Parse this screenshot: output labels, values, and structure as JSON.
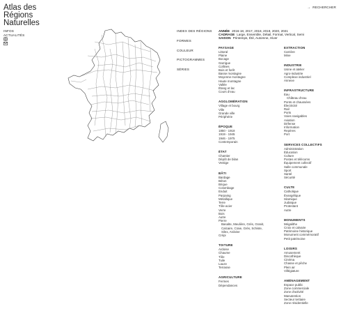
{
  "site": {
    "title_lines": [
      "Atlas des",
      "Régions",
      "Naturelles"
    ]
  },
  "left_nav": {
    "items": [
      "INFOS",
      "ACTUALITÉS"
    ],
    "icons": [
      "instagram-icon",
      "mail-icon"
    ]
  },
  "search": {
    "label": "RECHERCHER",
    "icon": "arrow-right-icon"
  },
  "main_menu": {
    "items": [
      "INDEX DES RÉGIONS",
      "FORMES",
      "COULEUR",
      "PICTOGRAMMES",
      "SÉRIES"
    ]
  },
  "filters": [
    {
      "key": "ANNÉE",
      "value": "2016-18, 2017, 2018, 2019, 2020, 2021"
    },
    {
      "key": "CADRAGE",
      "value": "Large, Ensemble, Détail, Format, Vertical, Semi"
    },
    {
      "key": "SAISON",
      "value": "Printemps, Été, Automne, Hiver"
    }
  ],
  "col1": [
    {
      "title": "PAYSAGE",
      "items": [
        "Littoral",
        "Plaine",
        "Bocage",
        "Garrigue",
        "Collines",
        "Bois et forêt",
        "Basse montagne",
        "Moyenne montagne",
        "Haute montagne",
        "Vallée",
        "Étang et lac",
        "Cours d'eau"
      ]
    },
    {
      "title": "AGGLOMÉRATION",
      "items": [
        "Village et bourg",
        "Ville",
        "Grande ville",
        "Périphérie"
      ]
    },
    {
      "title": "ÉPOQUE",
      "items": [
        "1850 - 1918",
        "1919 - 1945",
        "1946 - 1975",
        "Contemporain"
      ]
    },
    {
      "title": "ÉTAT",
      "items": [
        "Chantier",
        "Dépôt de bilan",
        "Vestige"
      ]
    },
    {
      "title": "BÂTI",
      "items": [
        "Bardage",
        "Béton",
        "Brique",
        "Colombage",
        "Enduit",
        "Parpaing",
        "Métallique",
        "Terre",
        "Tôle-acier",
        "Verre",
        "Bois",
        "Autre",
        "Pierre"
      ],
      "sub": [
        "Basalte, Meulière, Grès, Granit,",
        "Calcaire, Craie, Grès, Schiste,",
        "Silex, Ardoise"
      ],
      "after": [
        "Crépi"
      ]
    },
    {
      "title": "TOITURE",
      "items": [
        "Ardoise",
        "Chaume",
        "Tôle",
        "Tuile",
        "Lauze",
        "Terrasse"
      ]
    },
    {
      "title": "AGRICULTURE",
      "items": [
        "Fermes",
        "Dépendances"
      ]
    }
  ],
  "col2": [
    {
      "title": "EXTRACTION",
      "items": [
        "Carrière",
        "Mine"
      ]
    },
    {
      "title": "INDUSTRIE",
      "items": [
        "Usine et atelier",
        "Agro-industrie",
        "Complexe industriel",
        "Annexe"
      ]
    },
    {
      "title": "INFRASTRUCTURE",
      "items": [
        "Eau"
      ],
      "sub": [
        "Château d'eau"
      ],
      "after": [
        "Ponts et chaussées",
        "Électricité",
        "Rail",
        "Ports",
        "Voies navigables",
        "Aviation",
        "Défense",
        "Information",
        "Repères",
        "Port"
      ]
    },
    {
      "title": "SERVICES COLLECTIFS",
      "items": [
        "Administration",
        "Éducation",
        "Culture",
        "Postes et télécoms",
        "Équipement collectif",
        "Salle communale",
        "Sport",
        "Santé",
        "Sécurité"
      ]
    },
    {
      "title": "CULTE",
      "items": [
        "Catholique",
        "Évangélique",
        "Islamique",
        "Judaïque",
        "Protestant",
        "Autre"
      ]
    },
    {
      "title": "MONUMENTS",
      "items": [
        "Mégalithe",
        "Croix et calvaire",
        "Patrimoine historique",
        "Monument commémoratif",
        "Petit patrimoine"
      ]
    },
    {
      "title": "LOISIRS",
      "items": [
        "Amusement",
        "Discothèque",
        "Cinéma",
        "Chasse et pêche",
        "Plein air",
        "Villégiature"
      ]
    },
    {
      "title": "AMÉNAGEMENT",
      "items": [
        "Espace public",
        "Zone commerciale",
        "Zone d'activité",
        "Manutention",
        "Secteur tertiaire",
        "Zone résidentielle"
      ]
    }
  ]
}
